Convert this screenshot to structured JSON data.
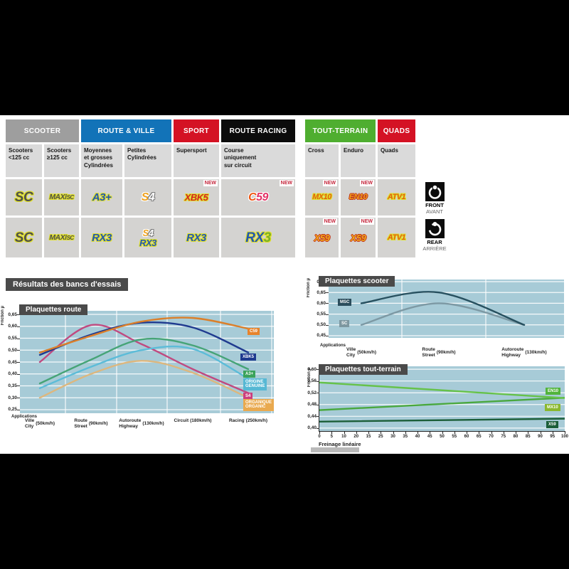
{
  "results_title": "Résultats des bancs d'essais",
  "labels": {
    "applications": "Applications",
    "friction": "Friction µ",
    "new": "NEW"
  },
  "position_markers": {
    "front": {
      "line1": "FRONT",
      "line2": "AVANT"
    },
    "rear": {
      "line1": "REAR",
      "line2": "ARRIÈRE"
    }
  },
  "table": {
    "categories": [
      {
        "label": "SCOOTER",
        "color": "#9e9e9e"
      },
      {
        "label": "ROUTE & VILLE",
        "color": "#1273b8"
      },
      {
        "label": "SPORT",
        "color": "#d41224"
      },
      {
        "label": "ROUTE RACING",
        "color": "#0c0c0c"
      },
      {
        "label": "TOUT-TERRAIN",
        "color": "#4fae30"
      },
      {
        "label": "QUADS",
        "color": "#d41224"
      }
    ],
    "subheaders": [
      "Scooters\n<125 cc",
      "Scooters\n≥125 cc",
      "Moyennes\net grosses\nCylindrées",
      "Petites\nCylindrées",
      "Supersport",
      "Course\nuniquement\nsur circuit",
      "Cross",
      "Enduro",
      "Quads"
    ],
    "rows": {
      "front": [
        {
          "logos": [
            [
              {
                "t": "SC",
                "s": "sc gy"
              }
            ]
          ]
        },
        {
          "logos": [
            [
              {
                "t": "MAXI",
                "s": "maxi gy"
              },
              {
                "t": "SC",
                "s": "maxisub gy"
              }
            ]
          ]
        },
        {
          "logos": [
            [
              {
                "t": "A3+",
                "s": "a3 gy"
              }
            ]
          ]
        },
        {
          "logos": [
            [
              {
                "t": "S",
                "s": "s4s gw"
              },
              {
                "t": "4",
                "s": "s44"
              }
            ]
          ]
        },
        {
          "new": true,
          "logos": [
            [
              {
                "t": "XBK5",
                "s": "xbk gy"
              }
            ]
          ]
        },
        {
          "new": true,
          "logos": [
            [
              {
                "t": "C",
                "s": "c59c gw"
              },
              {
                "t": "59",
                "s": "c5959 gw"
              }
            ]
          ]
        },
        {
          "new": true,
          "logos": [
            [
              {
                "t": "MX10",
                "s": "mx gy"
              }
            ]
          ]
        },
        {
          "new": true,
          "logos": [
            [
              {
                "t": "EN10",
                "s": "en gr"
              }
            ]
          ]
        },
        {
          "logos": [
            [
              {
                "t": "ATV1",
                "s": "atv gy"
              }
            ]
          ]
        }
      ],
      "rear": [
        {
          "logos": [
            [
              {
                "t": "SC",
                "s": "sc gy"
              }
            ]
          ]
        },
        {
          "logos": [
            [
              {
                "t": "MAXI",
                "s": "maxi gy"
              },
              {
                "t": "SC",
                "s": "maxisub gy"
              }
            ]
          ]
        },
        {
          "logos": [
            [
              {
                "t": "RX3",
                "s": "rx gy"
              }
            ]
          ]
        },
        {
          "logos": [
            [
              {
                "t": "S",
                "s": "s4s-sm gw"
              },
              {
                "t": "4",
                "s": "s44-sm"
              }
            ],
            [
              {
                "t": "RX3",
                "s": "rx-sm gy"
              }
            ]
          ]
        },
        {
          "logos": [
            [
              {
                "t": "RX3",
                "s": "rx gy"
              }
            ]
          ]
        },
        {
          "logos": [
            [
              {
                "t": "RX",
                "s": "rxbig gy"
              },
              {
                "t": "3",
                "s": "rxbig3 gy"
              }
            ]
          ]
        },
        {
          "new": true,
          "logos": [
            [
              {
                "t": "X59",
                "s": "x59 gr"
              }
            ]
          ]
        },
        {
          "new": true,
          "logos": [
            [
              {
                "t": "X59",
                "s": "x59 gr"
              }
            ]
          ]
        },
        {
          "logos": [
            [
              {
                "t": "ATV1",
                "s": "atv gy"
              }
            ]
          ]
        }
      ]
    }
  },
  "chart_data": [
    {
      "id": "route",
      "type": "line",
      "title": "Plaquettes route",
      "ylabel": "Friction µ",
      "xlabel": "Applications",
      "ylim": [
        0.25,
        0.65
      ],
      "grid": true,
      "legend_position": "right",
      "yticks": [
        "0,65",
        "0,60",
        "0,55",
        "0,50",
        "0,45",
        "0,40",
        "0,35",
        "0,30",
        "0,25"
      ],
      "categories": [
        {
          "fr": "Ville",
          "en": "City",
          "speed": "(50km/h)"
        },
        {
          "fr": "Route",
          "en": "Street",
          "speed": "(90km/h)"
        },
        {
          "fr": "Autoroute",
          "en": "Highway",
          "speed": "(130km/h)"
        },
        {
          "fr": "Circuit",
          "en": "",
          "speed": "(180km/h)"
        },
        {
          "fr": "Racing",
          "en": "",
          "speed": "(250km/h)"
        }
      ],
      "series": [
        {
          "name": "C59",
          "color": "#db7f2a",
          "badge_label": "C59",
          "badge_bg": "#e8832b",
          "values": [
            0.49,
            0.56,
            0.62,
            0.635,
            0.59
          ]
        },
        {
          "name": "XBK5",
          "color": "#1f3a8f",
          "badge_label": "XBK5",
          "badge_bg": "#1f3a8f",
          "values": [
            0.48,
            0.565,
            0.615,
            0.595,
            0.49
          ]
        },
        {
          "name": "A3+",
          "color": "#46a477",
          "badge_label": "A3+",
          "badge_bg": "#3ba35c",
          "values": [
            0.36,
            0.46,
            0.545,
            0.52,
            0.42
          ]
        },
        {
          "name": "ORIGINE/GENUINE",
          "color": "#5cbcd8",
          "badge_label": "ORIGINE\nGENUINE",
          "badge_bg": "#56b8d4",
          "values": [
            0.34,
            0.43,
            0.5,
            0.505,
            0.38
          ]
        },
        {
          "name": "S4",
          "color": "#c04a80",
          "badge_label": "S4",
          "badge_bg": "#cc3f7d",
          "values": [
            0.45,
            0.605,
            0.525,
            0.42,
            0.32
          ]
        },
        {
          "name": "ORGANIQUE/ORGANIC",
          "color": "#ddb77e",
          "badge_label": "ORGANIQUE\nORGANIC",
          "badge_bg": "#e9a94f",
          "values": [
            0.3,
            0.4,
            0.455,
            0.405,
            0.3
          ]
        }
      ]
    },
    {
      "id": "scooter",
      "type": "line",
      "title": "Plaquettes scooter",
      "ylabel": "Friction µ",
      "xlabel": "Applications",
      "ylim": [
        0.45,
        0.7
      ],
      "grid": true,
      "legend_position": "left",
      "yticks": [
        "0,70",
        "0,65",
        "0,60",
        "0,55",
        "0,50",
        "0,45"
      ],
      "categories": [
        {
          "fr": "Ville",
          "en": "City",
          "speed": "(50km/h)"
        },
        {
          "fr": "Route",
          "en": "Street",
          "speed": "(90km/h)"
        },
        {
          "fr": "Autoroute",
          "en": "Highway",
          "speed": "(130km/h)"
        }
      ],
      "series": [
        {
          "name": "MSC",
          "color": "#27505f",
          "badge_label": "MSC",
          "badge_bg": "#2b4d5c",
          "values": [
            0.6,
            0.65,
            0.5
          ]
        },
        {
          "name": "SC",
          "color": "#7d99a4",
          "badge_label": "SC",
          "badge_bg": "#7d97a0",
          "values": [
            0.5,
            0.6,
            0.5
          ]
        }
      ]
    },
    {
      "id": "tt",
      "type": "line",
      "title": "Plaquettes tout-terrain",
      "ylabel": "Friction µ",
      "xlabel": "Freinage linéaire",
      "ylim": [
        0.4,
        0.6
      ],
      "grid": true,
      "legend_position": "right",
      "yticks": [
        "0,60",
        "0,56",
        "0,52",
        "0,48",
        "0,44",
        "0,40"
      ],
      "xticks": [
        "0",
        "5",
        "10",
        "20",
        "15",
        "25",
        "30",
        "35",
        "40",
        "45",
        "50",
        "55",
        "60",
        "65",
        "70",
        "75",
        "80",
        "85",
        "90",
        "95",
        "100"
      ],
      "x_range": [
        0,
        100
      ],
      "series": [
        {
          "name": "EN10",
          "color": "#66c24a",
          "badge_label": "EN10",
          "badge_bg": "#52b43c",
          "values": [
            0.555,
            0.502
          ]
        },
        {
          "name": "MX10",
          "color": "#49a83e",
          "badge_label": "MX10",
          "badge_bg": "#8ab82e",
          "values": [
            0.461,
            0.503
          ]
        },
        {
          "name": "X59",
          "color": "#1b5e38",
          "badge_label": "X59",
          "badge_bg": "#1b5e38",
          "values": [
            0.422,
            0.432
          ]
        }
      ]
    }
  ]
}
